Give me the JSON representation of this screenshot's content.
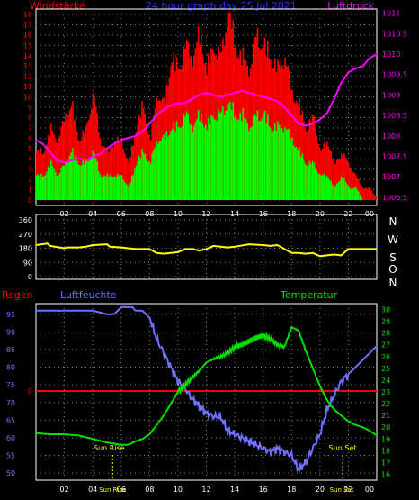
{
  "header": {
    "left_label": "Windstärke",
    "title": "24 hour graph day 25 Jul 2021",
    "right_label": "Luftdruck"
  },
  "colors": {
    "wind_gust": "#ff0000",
    "wind_avg": "#00ff00",
    "pressure": "#ff00ff",
    "direction": "#ffff00",
    "humidity": "#7070ff",
    "temperature": "#00e000",
    "rain": "#ff0000",
    "grid": "#808080",
    "axis": "#ffffff",
    "background": "#000000"
  },
  "compass": [
    "N",
    "W",
    "S",
    "O",
    "N"
  ],
  "bottom_labels": {
    "rain": "Regen",
    "humidity": "Luftfeuchte",
    "temperature": "Temperatur"
  },
  "chart_data": [
    {
      "type": "line",
      "panel": "wind-pressure",
      "x_ticks": [
        "02",
        "04",
        "06",
        "08",
        "10",
        "12",
        "14",
        "16",
        "18",
        "20",
        "22",
        "00"
      ],
      "xlim": [
        0,
        24
      ],
      "left_axis": {
        "title": "Windstärke",
        "ticks": [
          "0",
          "1",
          "2",
          "3",
          "4",
          "5",
          "6",
          "7",
          "8",
          "9",
          "10",
          "11",
          "12",
          "13",
          "14",
          "15",
          "16",
          "17",
          "18"
        ],
        "ylim": [
          0,
          18
        ]
      },
      "right_axis": {
        "title": "Luftdruck",
        "ticks": [
          "1006.5",
          "1007",
          "1007.5",
          "1008",
          "1008.5",
          "1009",
          "1009.5",
          "1010",
          "1010.5",
          "1011"
        ],
        "ylim": [
          1006.3,
          1011.1
        ]
      },
      "series": [
        {
          "name": "Luftdruck",
          "x": [
            0,
            0.5,
            1,
            1.5,
            2,
            2.5,
            3,
            3.5,
            4,
            4.5,
            5,
            5.5,
            6,
            6.5,
            7,
            7.5,
            8,
            8.5,
            9,
            9.5,
            10,
            10.5,
            11,
            11.5,
            12,
            12.5,
            13,
            13.5,
            14,
            14.5,
            15,
            15.5,
            16,
            16.5,
            17,
            17.5,
            18,
            18.5,
            19,
            19.5,
            20,
            20.5,
            21,
            21.5,
            22,
            22.5,
            23,
            23.5,
            24
          ],
          "values": [
            1007.9,
            1007.8,
            1007.6,
            1007.4,
            1007.35,
            1007.4,
            1007.45,
            1007.4,
            1007.5,
            1007.55,
            1007.7,
            1007.8,
            1007.9,
            1007.95,
            1008.0,
            1008.1,
            1008.3,
            1008.5,
            1008.65,
            1008.75,
            1008.8,
            1008.8,
            1008.9,
            1009.0,
            1009.05,
            1009.0,
            1008.95,
            1009.0,
            1009.05,
            1009.1,
            1009.05,
            1009.0,
            1008.95,
            1008.9,
            1008.85,
            1008.7,
            1008.5,
            1008.3,
            1008.25,
            1008.3,
            1008.4,
            1008.55,
            1008.9,
            1009.3,
            1009.55,
            1009.65,
            1009.7,
            1009.9,
            1010.0
          ]
        },
        {
          "name": "Windstärke Böen",
          "x": [
            0,
            0.5,
            1,
            1.5,
            2,
            2.5,
            3,
            3.5,
            4,
            4.5,
            5,
            5.5,
            6,
            6.5,
            7,
            7.5,
            8,
            8.5,
            9,
            9.5,
            10,
            10.5,
            11,
            11.5,
            12,
            12.5,
            13,
            13.5,
            14,
            14.5,
            15,
            15.5,
            16,
            16.5,
            17,
            17.5,
            18,
            18.5,
            19,
            19.5,
            20,
            20.5,
            21,
            21.5,
            22,
            22.5,
            23,
            23.5,
            24
          ],
          "values": [
            4,
            4,
            6,
            5,
            7,
            8,
            5,
            6,
            9,
            5,
            4,
            5,
            5,
            3,
            6,
            8,
            5,
            9,
            8,
            12,
            11,
            13,
            12,
            14,
            11,
            13,
            12,
            16,
            13,
            12,
            11,
            14,
            13,
            12,
            11,
            12,
            9,
            8,
            6,
            7,
            4,
            5,
            3,
            4,
            3,
            2,
            1,
            1,
            0
          ]
        },
        {
          "name": "Windstärke Mittel",
          "x": [
            0,
            0.5,
            1,
            1.5,
            2,
            2.5,
            3,
            3.5,
            4,
            4.5,
            5,
            5.5,
            6,
            6.5,
            7,
            7.5,
            8,
            8.5,
            9,
            9.5,
            10,
            10.5,
            11,
            11.5,
            12,
            12.5,
            13,
            13.5,
            14,
            14.5,
            15,
            15.5,
            16,
            16.5,
            17,
            17.5,
            18,
            18.5,
            19,
            19.5,
            20,
            20.5,
            21,
            21.5,
            22,
            22.5,
            23,
            23.5,
            24
          ],
          "values": [
            2,
            2,
            3,
            2,
            3,
            4,
            3,
            3,
            4,
            2,
            2,
            2,
            2,
            1,
            3,
            4,
            3,
            5,
            5,
            6,
            6,
            7,
            6,
            7,
            6,
            7,
            7,
            8,
            7,
            7,
            6,
            7,
            7,
            6,
            6,
            6,
            5,
            4,
            3,
            3,
            2,
            2,
            1,
            2,
            1,
            1,
            0,
            0,
            0
          ]
        }
      ]
    },
    {
      "type": "line",
      "panel": "wind-direction",
      "x_ticks": [
        "02",
        "04",
        "06",
        "08",
        "10",
        "12",
        "14",
        "16",
        "18",
        "20",
        "22",
        "00"
      ],
      "xlim": [
        0,
        24
      ],
      "y_ticks": [
        "0",
        "90",
        "180",
        "270",
        "360"
      ],
      "ylim": [
        0,
        360
      ],
      "series": [
        {
          "name": "Windrichtung",
          "x": [
            0,
            0.8,
            1,
            2,
            2.2,
            3,
            3.5,
            4,
            5,
            5.2,
            6,
            7,
            7.5,
            8,
            8.5,
            9,
            9.5,
            10,
            10.5,
            11,
            11.5,
            12,
            12.5,
            13,
            13.5,
            14,
            15,
            16,
            16.5,
            17,
            17.5,
            18,
            18.5,
            19,
            19.5,
            20,
            20.5,
            21,
            21.5,
            22,
            23,
            24
          ],
          "values": [
            200,
            210,
            195,
            180,
            185,
            185,
            190,
            200,
            205,
            190,
            185,
            175,
            175,
            175,
            150,
            145,
            150,
            155,
            175,
            175,
            165,
            175,
            195,
            190,
            185,
            190,
            205,
            200,
            195,
            200,
            175,
            150,
            150,
            145,
            150,
            130,
            135,
            140,
            135,
            175,
            175,
            175
          ]
        }
      ]
    },
    {
      "type": "line",
      "panel": "humidity-temperature",
      "x_ticks": [
        "02",
        "04",
        "06",
        "08",
        "10",
        "12",
        "14",
        "16",
        "18",
        "20",
        "22",
        "00"
      ],
      "xlim": [
        0,
        24
      ],
      "left_axis": {
        "title": "Luftfeuchte",
        "ticks": [
          "50",
          "55",
          "60",
          "65",
          "70",
          "75",
          "80",
          "85",
          "90",
          "95"
        ],
        "ylim": [
          48,
          98
        ]
      },
      "right_axis": {
        "title": "Temperatur",
        "ticks": [
          "16",
          "17",
          "18",
          "19",
          "20",
          "21",
          "22",
          "23",
          "24",
          "25",
          "26",
          "27",
          "28",
          "29",
          "30"
        ],
        "ylim": [
          15.5,
          30.5
        ]
      },
      "rain_label": "0",
      "annotations": [
        "Sun Rise",
        "Sun Set"
      ],
      "series": [
        {
          "name": "Luftfeuchte",
          "x": [
            0,
            1,
            2,
            3,
            4,
            5,
            5.5,
            6,
            6.8,
            7,
            7.5,
            8,
            8.5,
            9,
            9.5,
            10,
            10.5,
            11,
            11.5,
            12,
            12.5,
            13,
            13.5,
            14,
            14.5,
            15,
            15.5,
            16,
            16.5,
            17,
            17.5,
            18,
            18.5,
            19,
            19.5,
            20,
            20.5,
            21,
            21.5,
            22,
            22.5,
            23,
            23.5,
            24
          ],
          "values": [
            96,
            96,
            96,
            96,
            96,
            95,
            95,
            97,
            97,
            96,
            96,
            94,
            88,
            84,
            80,
            76,
            74,
            71,
            69,
            67,
            66,
            66,
            62,
            61,
            60,
            59,
            58,
            57,
            56,
            57,
            56,
            55,
            51,
            53,
            57,
            61,
            68,
            72,
            76,
            78,
            80,
            82,
            84,
            86
          ]
        },
        {
          "name": "Temperatur",
          "x": [
            0,
            1,
            2,
            3,
            4,
            5,
            5.5,
            6,
            6.5,
            7,
            7.5,
            8,
            8.5,
            9,
            9.5,
            10,
            10.5,
            11,
            11.5,
            12,
            12.5,
            13,
            13.5,
            14,
            14.5,
            15,
            15.5,
            16,
            16.5,
            17,
            17.5,
            18,
            18.5,
            19,
            19.5,
            20,
            20.5,
            21,
            21.5,
            22,
            22.5,
            23,
            23.5,
            24
          ],
          "values": [
            19.5,
            19.4,
            19.4,
            19.3,
            19.0,
            18.7,
            18.6,
            18.5,
            18.5,
            18.8,
            19.0,
            19.4,
            20.2,
            21.0,
            22.0,
            23.0,
            23.6,
            24.2,
            24.8,
            25.5,
            25.8,
            26.0,
            26.3,
            26.8,
            27.0,
            27.3,
            27.6,
            27.8,
            27.5,
            27.0,
            26.8,
            28.5,
            28.2,
            26.5,
            25.0,
            23.5,
            22.3,
            21.5,
            21.0,
            20.5,
            20.2,
            20.0,
            19.7,
            19.3
          ]
        }
      ]
    }
  ]
}
